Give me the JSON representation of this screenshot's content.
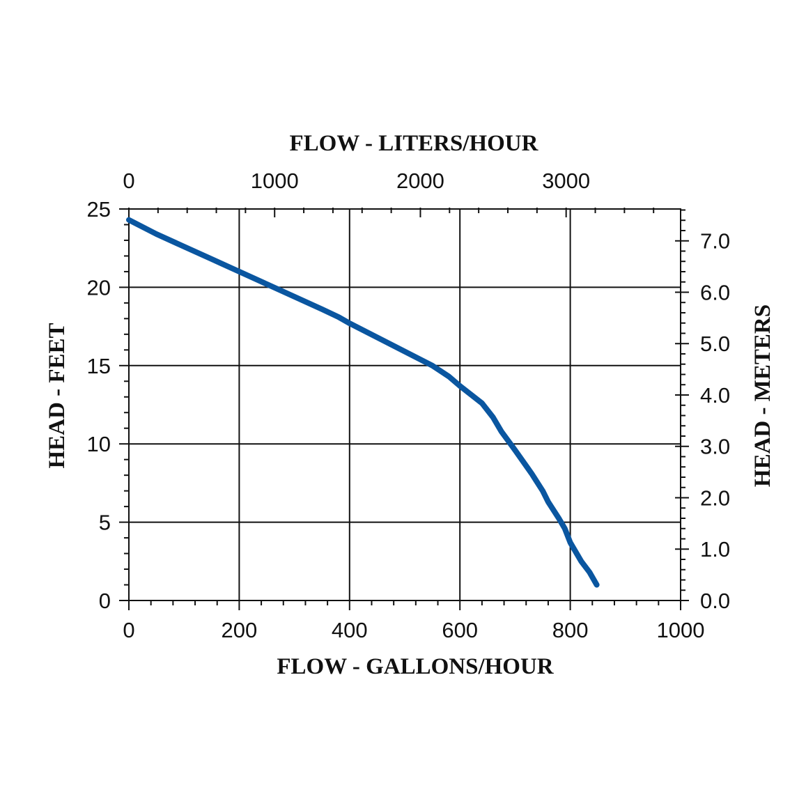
{
  "chart_data": {
    "type": "line",
    "xlabel": "FLOW - GALLONS/HOUR",
    "ylabel": "HEAD - FEET",
    "x2label": "FLOW - LITERS/HOUR",
    "y2label": "HEAD - METERS",
    "xlim": [
      0,
      1000
    ],
    "ylim": [
      0,
      25
    ],
    "x_ticks": [
      "0",
      "200",
      "400",
      "600",
      "800",
      "1000"
    ],
    "y_ticks": [
      "0",
      "5",
      "10",
      "15",
      "20",
      "25"
    ],
    "x2_ticks": [
      "0",
      "1000",
      "2000",
      "3000"
    ],
    "y2_ticks": [
      "0.0",
      "1.0",
      "2.0",
      "3.0",
      "4.0",
      "5.0",
      "6.0",
      "7.0"
    ],
    "grid": true,
    "series_color": "#0a56a0",
    "series": [
      {
        "x": [
          0,
          50,
          100,
          150,
          200,
          250,
          300,
          350,
          380,
          400,
          450,
          500,
          550,
          580,
          600,
          640,
          660,
          675,
          700,
          730,
          750,
          760,
          780,
          790,
          800,
          820,
          835,
          848
        ],
        "y": [
          24.3,
          23.4,
          22.6,
          21.8,
          21.0,
          20.2,
          19.4,
          18.6,
          18.1,
          17.7,
          16.8,
          15.9,
          15.0,
          14.3,
          13.7,
          12.6,
          11.7,
          10.8,
          9.6,
          8.1,
          7.0,
          6.3,
          5.2,
          4.6,
          3.7,
          2.5,
          1.8,
          1.0
        ]
      }
    ]
  }
}
